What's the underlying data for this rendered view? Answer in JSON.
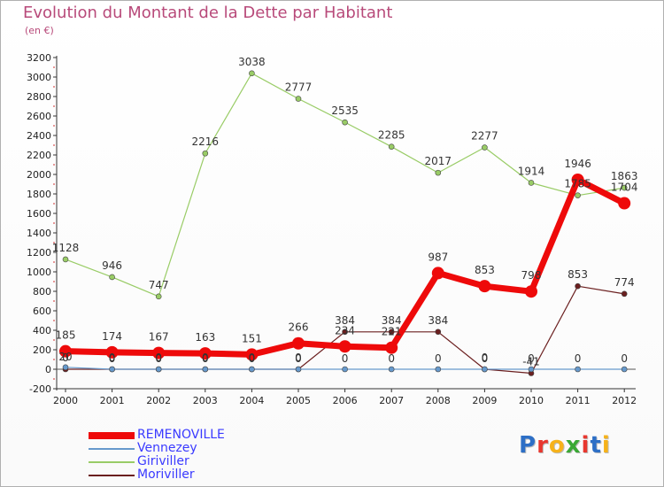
{
  "title": "Evolution du Montant de la Dette par Habitant",
  "unit": "(en €)",
  "logo": {
    "text": "Proxiti",
    "colors": [
      "#2d6fc6",
      "#e8372f",
      "#f6b21a",
      "#3aa835",
      "#e8372f",
      "#2d6fc6",
      "#f6b21a"
    ]
  },
  "chart_data": {
    "type": "line",
    "title": "Evolution du Montant de la Dette par Habitant",
    "subtitle": "(en €)",
    "xlabel": "",
    "ylabel": "",
    "x": [
      "2000",
      "2001",
      "2002",
      "2003",
      "2004",
      "2005",
      "2006",
      "2007",
      "2008",
      "2009",
      "2010",
      "2011",
      "2012"
    ],
    "ylim": [
      -200,
      3200
    ],
    "yticks": [
      "-200",
      "0",
      "200",
      "400",
      "600",
      "800",
      "1000",
      "1200",
      "1400",
      "1600",
      "1800",
      "2000",
      "2200",
      "2400",
      "2600",
      "2800",
      "3000",
      "3200"
    ],
    "grid": false,
    "legend_position": "bottom-left",
    "series": [
      {
        "name": "REMENOVILLE",
        "color": "#ee0a0a",
        "labelColor": "#333333",
        "values": [
          185,
          174,
          167,
          163,
          151,
          266,
          234,
          221,
          987,
          853,
          798,
          1946,
          1704
        ],
        "labels": [
          "185",
          "174",
          "167",
          "163",
          "151",
          "266",
          "234",
          "221",
          "987",
          "853",
          "798",
          "1946",
          "1704"
        ]
      },
      {
        "name": "Vennezey",
        "color": "#6699cc",
        "labelColor": "#333333",
        "values": [
          20,
          0,
          0,
          0,
          0,
          0,
          0,
          0,
          0,
          0,
          0,
          0,
          0
        ],
        "labels": [
          "20",
          "0",
          "0",
          "0",
          "0",
          "0",
          "0",
          "0",
          "0",
          "0",
          "0",
          "0",
          "0"
        ]
      },
      {
        "name": "Giriviller",
        "color": "#99cc66",
        "labelColor": "#333333",
        "values": [
          1128,
          946,
          747,
          2216,
          3038,
          2777,
          2535,
          2285,
          2017,
          2277,
          1914,
          1785,
          1863
        ],
        "labels": [
          "1128",
          "946",
          "747",
          "2216",
          "3038",
          "2777",
          "2535",
          "2285",
          "2017",
          "2277",
          "1914",
          "1785",
          "1863"
        ]
      },
      {
        "name": "Moriviller",
        "color": "#6b1f1f",
        "labelColor": "#333333",
        "values": [
          0,
          0,
          0,
          0,
          0,
          0,
          384,
          384,
          384,
          0,
          -41,
          853,
          774
        ],
        "labels": [
          "0",
          "0",
          "0",
          "0",
          "0",
          "0",
          "384",
          "384",
          "384",
          "0",
          "-41",
          "853",
          "774"
        ]
      }
    ],
    "legend_label_colors": [
      "#3a3aff",
      "#3a3aff",
      "#3a3aff",
      "#3a3aff"
    ]
  }
}
